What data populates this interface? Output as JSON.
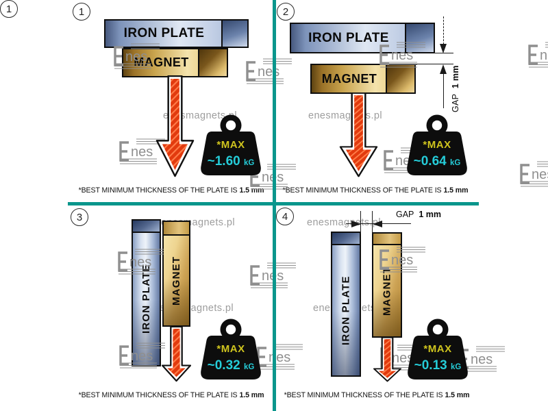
{
  "dividers": {
    "color": "#0a968c"
  },
  "watermarks": {
    "site": "enesmagnets.pl",
    "logo": "nes"
  },
  "shared": {
    "iron_plate_label": "IRON PLATE",
    "magnet_label": "MAGNET",
    "max_label": "*MAX",
    "kg_unit": "kG",
    "caption_normal": "*BEST MINIMUM THICKNESS OF THE PLATE IS",
    "caption_bold": "1.5 mm",
    "gap_label": "GAP",
    "gap_value": "1 mm"
  },
  "panels": [
    {
      "number": "1",
      "orientation": "horizontal",
      "gap": false,
      "max_value": "~1.60"
    },
    {
      "number": "2",
      "orientation": "horizontal",
      "gap": true,
      "max_value": "~0.64"
    },
    {
      "number": "3",
      "orientation": "vertical",
      "gap": false,
      "max_value": "~0.32"
    },
    {
      "number": "4",
      "orientation": "vertical",
      "gap": true,
      "max_value": "~0.13"
    }
  ],
  "colors": {
    "divider_teal": "#0a968c",
    "arrow_red": "#e23a0e",
    "max_yellow": "#cfc41e",
    "value_cyan": "#25ccd8",
    "weight_black": "#0d0d0d",
    "watermark_gray": "#9d9d9d"
  }
}
